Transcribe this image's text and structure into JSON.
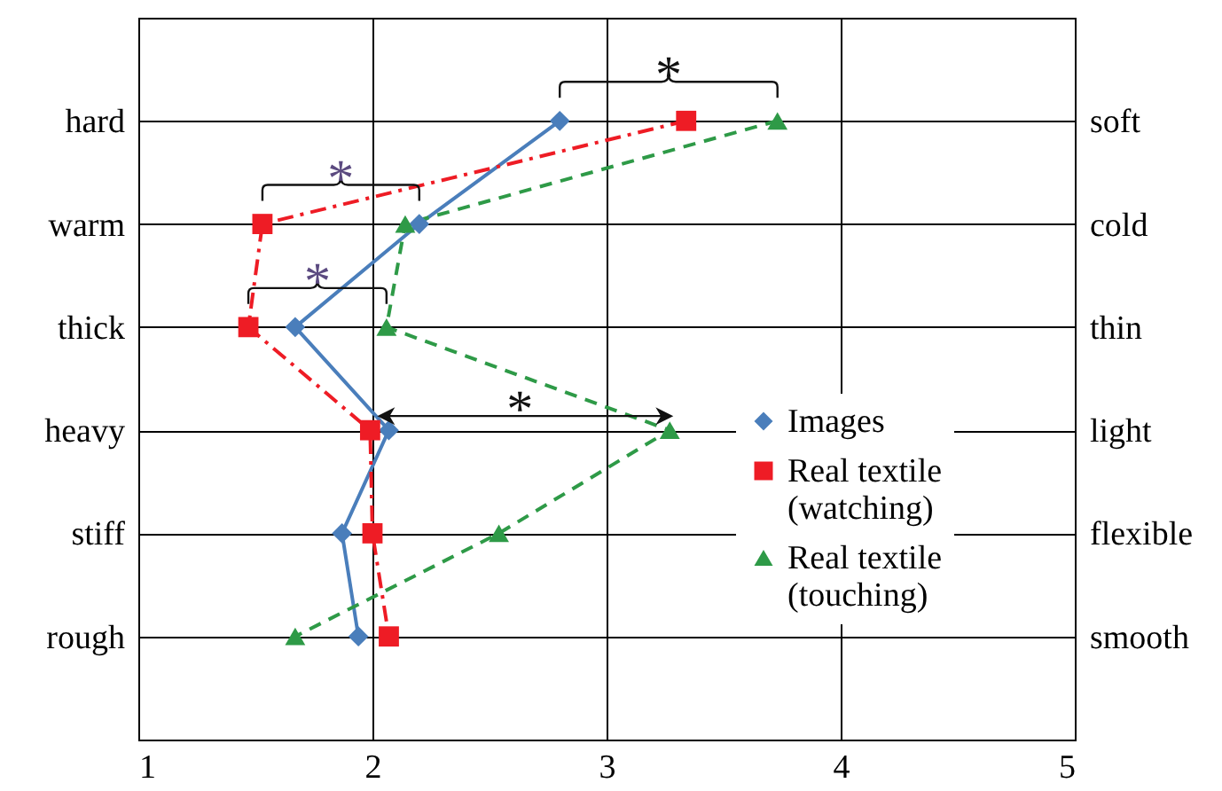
{
  "chart_data": {
    "type": "line",
    "orientation": "horizontal",
    "categories": [
      "hard",
      "warm",
      "thick",
      "heavy",
      "stiff",
      "rough"
    ],
    "y2_categories": [
      "soft",
      "cold",
      "thin",
      "light",
      "flexible",
      "smooth"
    ],
    "xlim": [
      1,
      5
    ],
    "xticks": [
      {
        "value": 1,
        "label": "1"
      },
      {
        "value": 2,
        "label": "2"
      },
      {
        "value": 3,
        "label": "3"
      },
      {
        "value": 4,
        "label": "4"
      },
      {
        "value": 5,
        "label": "5"
      }
    ],
    "grid": true,
    "legend": "bottom right",
    "series": [
      {
        "name": "Images",
        "color": "#4a7ebb",
        "marker": "diamond",
        "line_style": "solid",
        "values": [
          2.8,
          2.2,
          1.67,
          2.07,
          1.87,
          1.94
        ]
      },
      {
        "name": "Real textile (watching)",
        "color": "#ee1c25",
        "marker": "square",
        "line_style": "dashdot",
        "values": [
          3.34,
          1.53,
          1.47,
          1.99,
          2.0,
          2.07
        ]
      },
      {
        "name": "Real textile (touching)",
        "color": "#2e9a47",
        "marker": "triangle",
        "line_style": "dashed",
        "values": [
          3.73,
          2.14,
          2.06,
          3.27,
          2.54,
          1.67
        ]
      }
    ],
    "annotations": [
      "*",
      "*",
      "*",
      "*"
    ]
  }
}
